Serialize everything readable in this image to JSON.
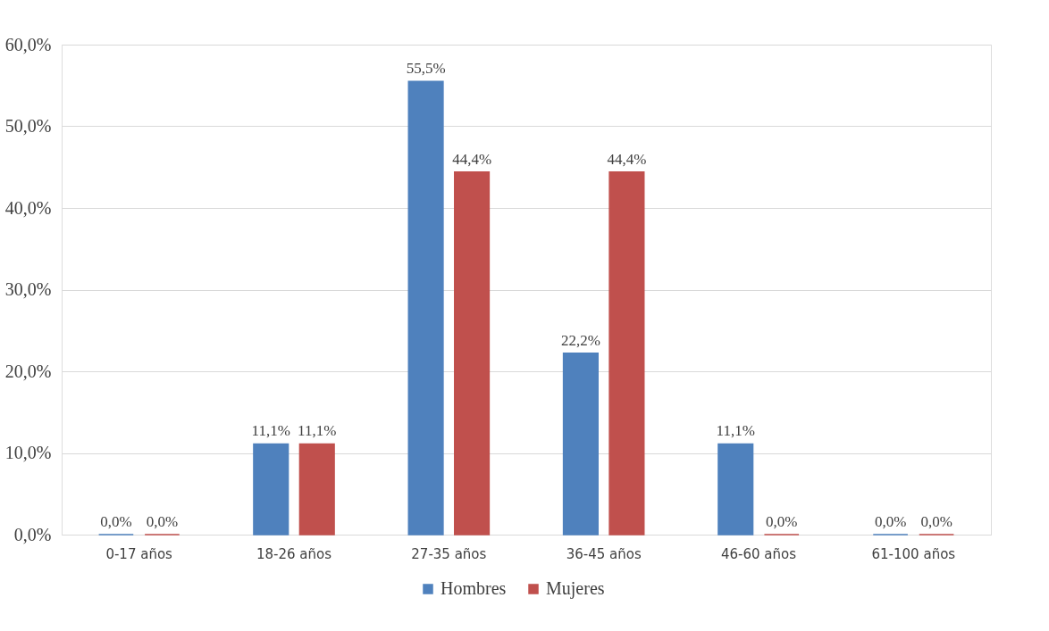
{
  "chart_data": {
    "type": "bar",
    "categories": [
      "0-17 años",
      "18-26 años",
      "27-35 años",
      "36-45 años",
      "46-60 años",
      "61-100 años"
    ],
    "series": [
      {
        "name": "Hombres",
        "color": "#4f81bd",
        "values": [
          0.0,
          11.1,
          55.5,
          22.2,
          11.1,
          0.0
        ],
        "value_labels": [
          "0,0%",
          "11,1%",
          "55,5%",
          "22,2%",
          "11,1%",
          "0,0%"
        ]
      },
      {
        "name": "Mujeres",
        "color": "#c0504d",
        "values": [
          0.0,
          11.1,
          44.4,
          44.4,
          0.0,
          0.0
        ],
        "value_labels": [
          "0,0%",
          "11,1%",
          "44,4%",
          "44,4%",
          "0,0%",
          "0,0%"
        ]
      }
    ],
    "ylim": [
      0,
      60
    ],
    "yticks": [
      {
        "value": 0,
        "label": "0,0%"
      },
      {
        "value": 10,
        "label": "10,0%"
      },
      {
        "value": 20,
        "label": "20,0%"
      },
      {
        "value": 30,
        "label": "30,0%"
      },
      {
        "value": 40,
        "label": "40,0%"
      },
      {
        "value": 50,
        "label": "50,0%"
      },
      {
        "value": 60,
        "label": "60,0%"
      }
    ],
    "grid": "y",
    "legend": "bottom"
  }
}
